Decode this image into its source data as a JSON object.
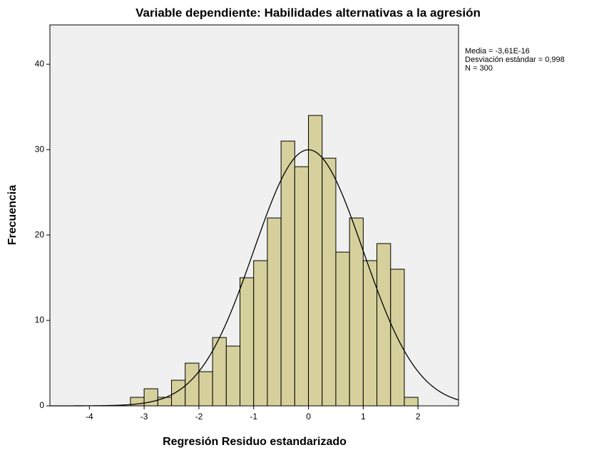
{
  "chart_data": {
    "type": "histogram",
    "title": "Variable dependiente: Habilidades alternativas a la agresión",
    "xlabel": "Regresión Residuo estandarizado",
    "ylabel": "Frecuencia",
    "bins": [
      -3.25,
      -3.0,
      -2.75,
      -2.5,
      -2.25,
      -2.0,
      -1.75,
      -1.5,
      -1.25,
      -1.0,
      -0.75,
      -0.5,
      -0.25,
      0.0,
      0.25,
      0.5,
      0.75,
      1.0,
      1.25,
      1.5,
      1.75,
      2.0
    ],
    "values": [
      1,
      2,
      1,
      3,
      5,
      4,
      8,
      7,
      15,
      17,
      22,
      31,
      28,
      34,
      29,
      18,
      22,
      17,
      19,
      16,
      1
    ],
    "color": "#d6d09c",
    "xlim": [
      -4.72,
      2.74
    ],
    "ylim": [
      0,
      44.6
    ],
    "xticks": [
      -4,
      -3,
      -2,
      -1,
      0,
      1,
      2
    ],
    "yticks": [
      0,
      10,
      20,
      30,
      40
    ],
    "grid": false,
    "stats": {
      "mean": {
        "value": -3.61e-16,
        "label": "Media = -3,61E-16"
      },
      "sd": {
        "value": 0.998,
        "label": "Desviación estándar = 0,998"
      },
      "n": {
        "value": 300,
        "label": "N = 300"
      }
    }
  }
}
